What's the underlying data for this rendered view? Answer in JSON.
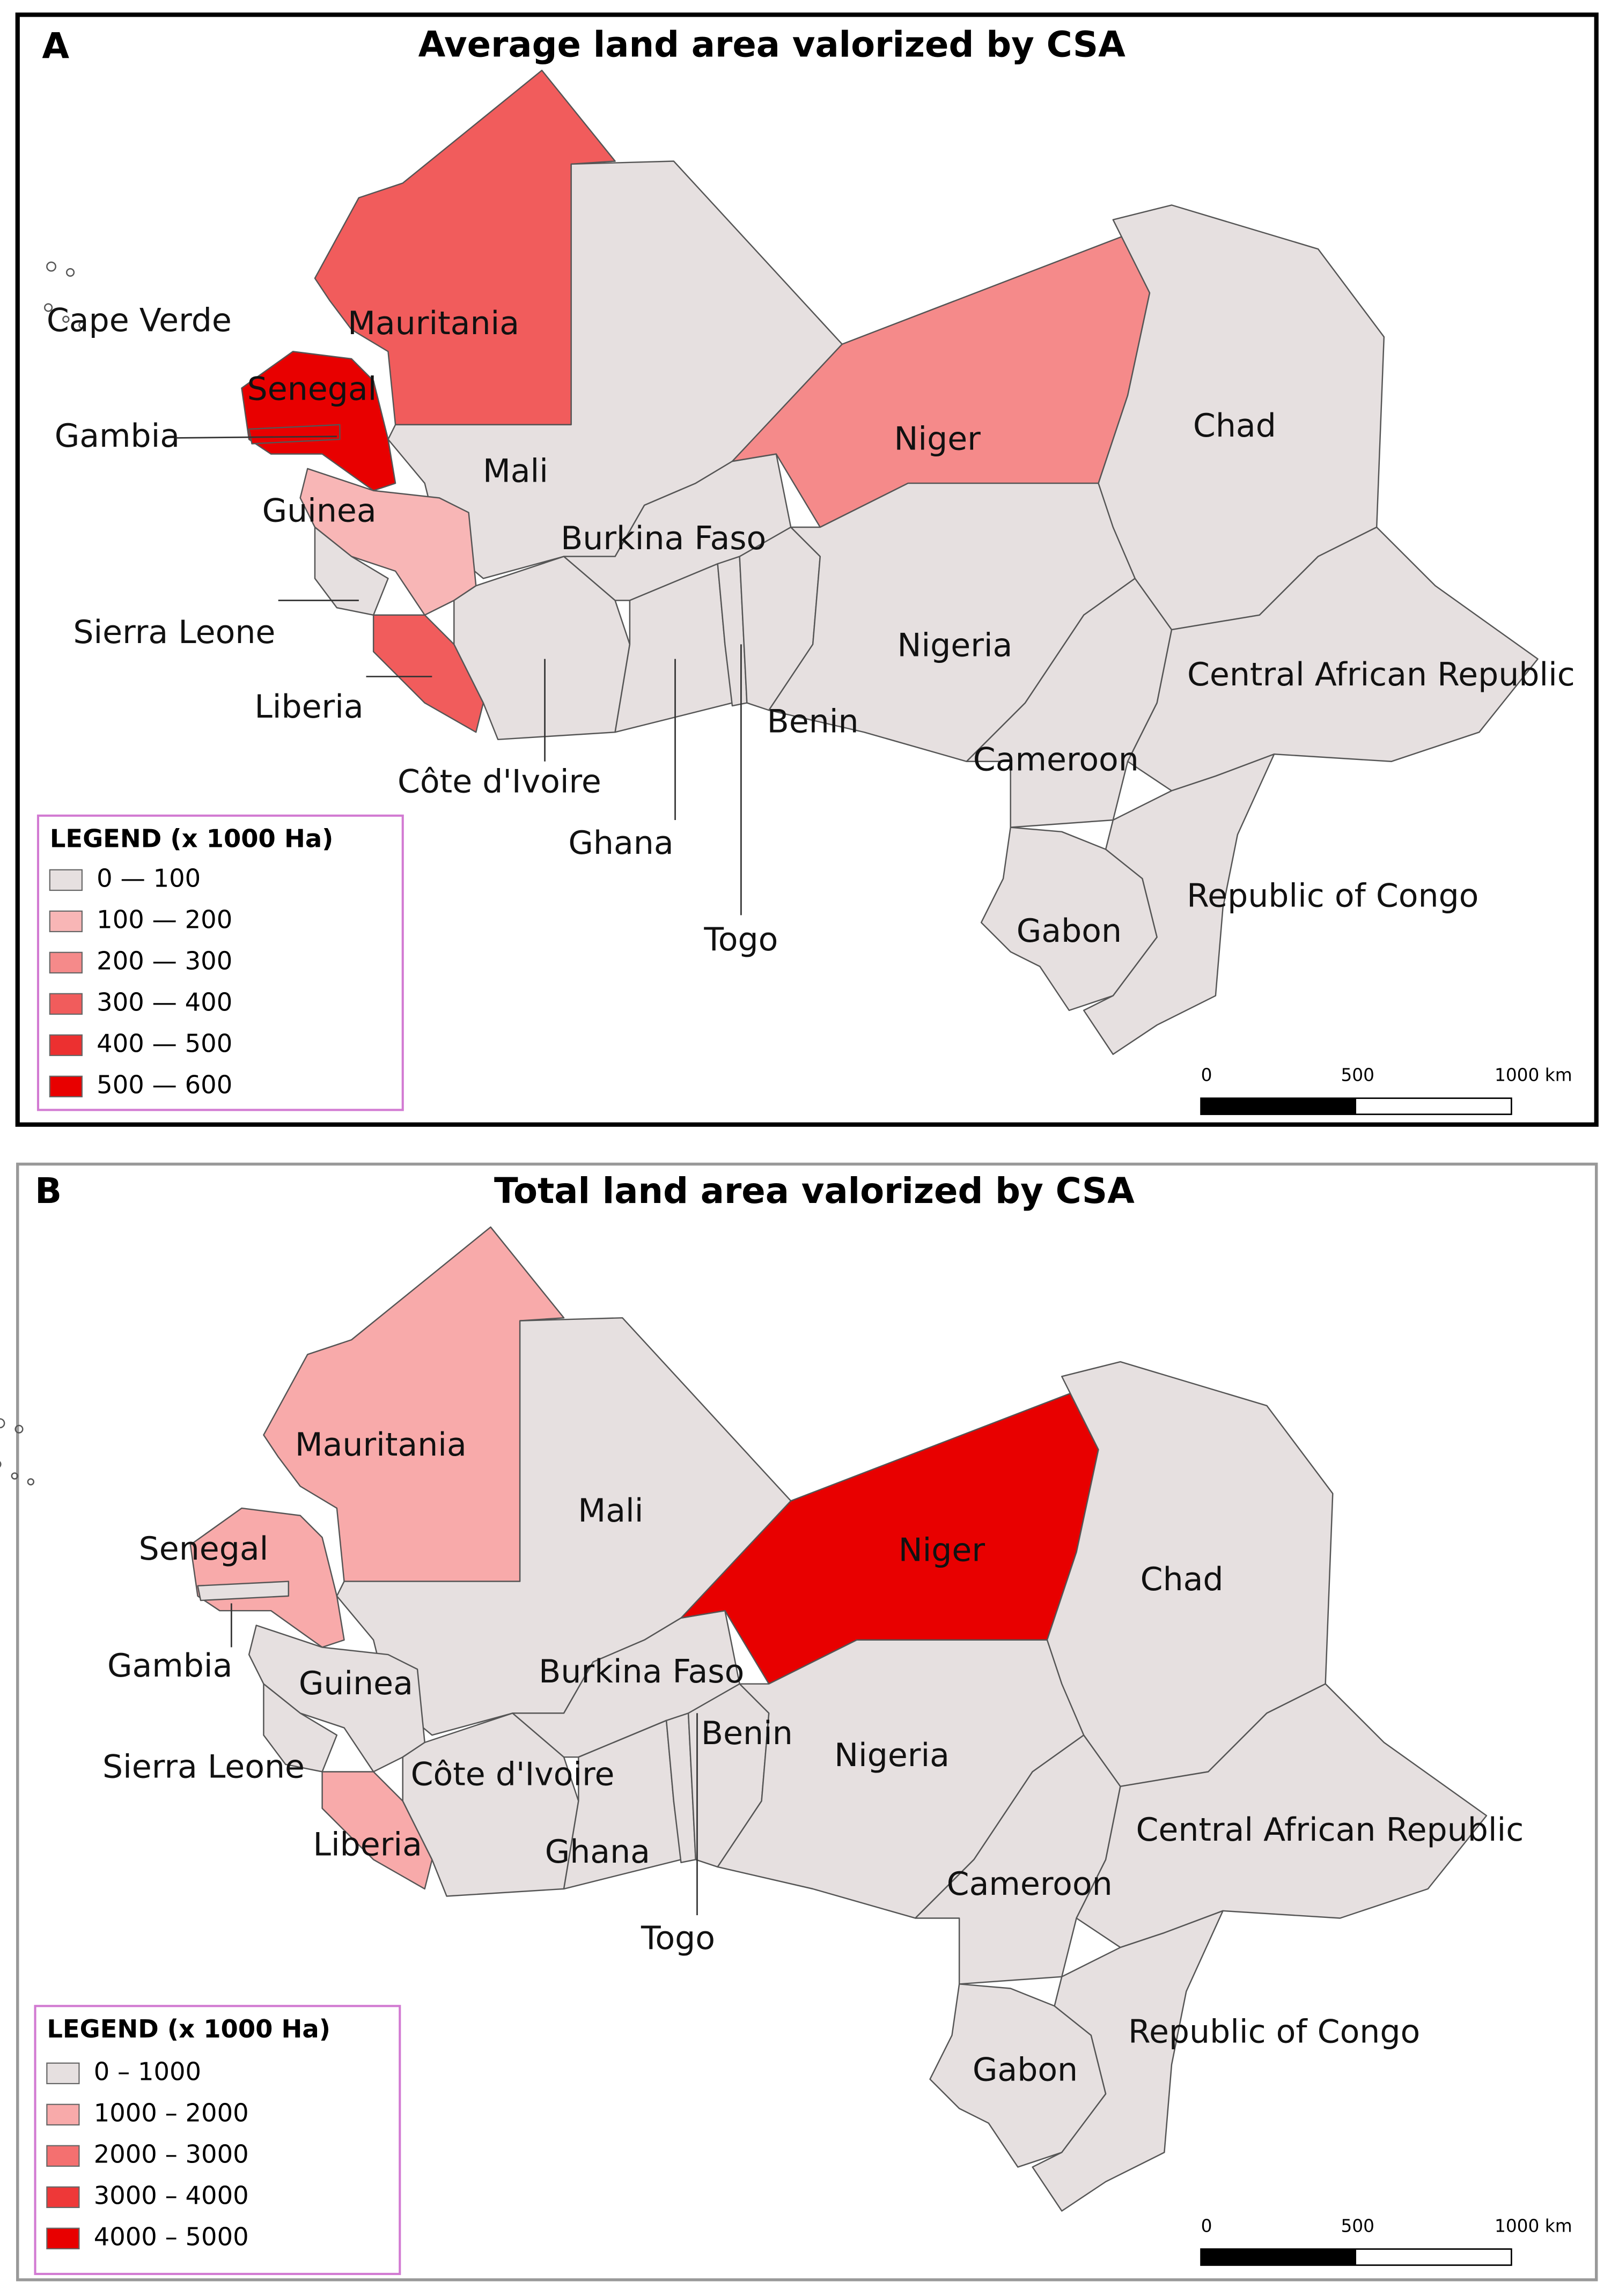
{
  "panels": [
    {
      "letter": "A",
      "title": "Average land area valorized by CSA",
      "legend": {
        "title": "LEGEND (x 1000 Ha)",
        "items": [
          {
            "label": "0 — 100",
            "color": "#e6e0e0"
          },
          {
            "label": "100 — 200",
            "color": "#f8b6b6"
          },
          {
            "label": "200 — 300",
            "color": "#f58a8a"
          },
          {
            "label": "300 — 400",
            "color": "#f15c5c"
          },
          {
            "label": "400 — 500",
            "color": "#ec3030"
          },
          {
            "label": "500 — 600",
            "color": "#e80000"
          }
        ]
      },
      "countries": [
        {
          "name": "Cape Verde",
          "fill": "#ffffff"
        },
        {
          "name": "Mauritania",
          "fill": "#f15c5c"
        },
        {
          "name": "Senegal",
          "fill": "#e80000"
        },
        {
          "name": "Gambia",
          "fill": "#e80000"
        },
        {
          "name": "Mali",
          "fill": "#e6e0e0"
        },
        {
          "name": "Guinea",
          "fill": "#f8b6b6"
        },
        {
          "name": "Sierra Leone",
          "fill": "#e6e0e0"
        },
        {
          "name": "Liberia",
          "fill": "#f15c5c"
        },
        {
          "name": "Côte d'Ivoire",
          "fill": "#e6e0e0"
        },
        {
          "name": "Burkina Faso",
          "fill": "#e6e0e0"
        },
        {
          "name": "Ghana",
          "fill": "#e6e0e0"
        },
        {
          "name": "Togo",
          "fill": "#e6e0e0"
        },
        {
          "name": "Benin",
          "fill": "#e6e0e0"
        },
        {
          "name": "Niger",
          "fill": "#f58a8a"
        },
        {
          "name": "Nigeria",
          "fill": "#e6e0e0"
        },
        {
          "name": "Cameroon",
          "fill": "#e6e0e0"
        },
        {
          "name": "Chad",
          "fill": "#e6e0e0"
        },
        {
          "name": "Central African Republic",
          "fill": "#e6e0e0"
        },
        {
          "name": "Gabon",
          "fill": "#e6e0e0"
        },
        {
          "name": "Republic of Congo",
          "fill": "#e6e0e0"
        }
      ],
      "scale": [
        "0",
        "500",
        "1000 km"
      ]
    },
    {
      "letter": "B",
      "title": "Total land area valorized by CSA",
      "legend": {
        "title": "LEGEND (x 1000 Ha)",
        "items": [
          {
            "label": "0 – 1000",
            "color": "#e6e0e0"
          },
          {
            "label": "1000 – 2000",
            "color": "#f8aaaa"
          },
          {
            "label": "2000 – 3000",
            "color": "#f47070"
          },
          {
            "label": "3000 – 4000",
            "color": "#ee3838"
          },
          {
            "label": "4000 – 5000",
            "color": "#e80000"
          }
        ]
      },
      "countries": [
        {
          "name": "Mauritania",
          "fill": "#f8aaaa"
        },
        {
          "name": "Senegal",
          "fill": "#f8aaaa"
        },
        {
          "name": "Gambia",
          "fill": "#e6e0e0"
        },
        {
          "name": "Mali",
          "fill": "#e6e0e0"
        },
        {
          "name": "Guinea",
          "fill": "#e6e0e0"
        },
        {
          "name": "Sierra Leone",
          "fill": "#e6e0e0"
        },
        {
          "name": "Liberia",
          "fill": "#f8aaaa"
        },
        {
          "name": "Côte d'Ivoire",
          "fill": "#e6e0e0"
        },
        {
          "name": "Burkina Faso",
          "fill": "#e6e0e0"
        },
        {
          "name": "Ghana",
          "fill": "#e6e0e0"
        },
        {
          "name": "Togo",
          "fill": "#e6e0e0"
        },
        {
          "name": "Benin",
          "fill": "#e6e0e0"
        },
        {
          "name": "Niger",
          "fill": "#e80000"
        },
        {
          "name": "Nigeria",
          "fill": "#e6e0e0"
        },
        {
          "name": "Cameroon",
          "fill": "#e6e0e0"
        },
        {
          "name": "Chad",
          "fill": "#e6e0e0"
        },
        {
          "name": "Central African Republic",
          "fill": "#e6e0e0"
        },
        {
          "name": "Gabon",
          "fill": "#e6e0e0"
        },
        {
          "name": "Republic of Congo",
          "fill": "#e6e0e0"
        }
      ],
      "scale": [
        "0",
        "500",
        "1000 km"
      ]
    }
  ]
}
